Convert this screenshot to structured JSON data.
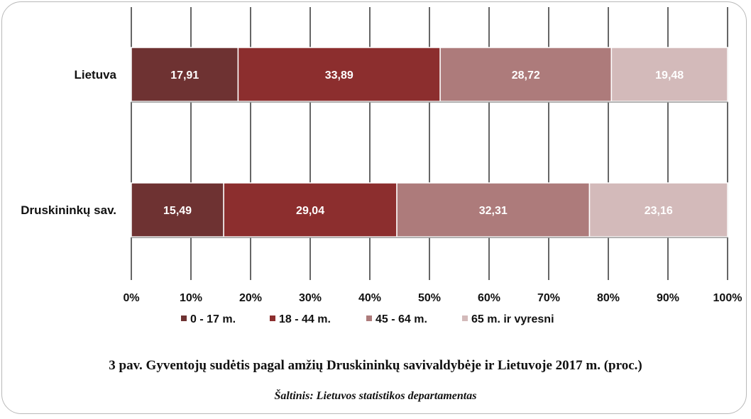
{
  "caption": "3 pav. Gyventojų sudėtis pagal amžių Druskininkų savivaldybėje ir Lietuvoje 2017 m. (proc.)",
  "source": "Šaltinis: Lietuvos statistikos departamentas",
  "chart_data": {
    "type": "bar",
    "orientation": "horizontal",
    "stacked": "percent",
    "categories": [
      "Lietuva",
      "Druskininkų sav."
    ],
    "series": [
      {
        "name": "0 - 17 m.",
        "values": [
          17.91,
          15.49
        ],
        "labels": [
          "17,91",
          "15,49"
        ],
        "color": "#6e3232"
      },
      {
        "name": "18 - 44 m.",
        "values": [
          33.89,
          29.04
        ],
        "labels": [
          "33,89",
          "29,04"
        ],
        "color": "#8c2e2e"
      },
      {
        "name": "45 - 64 m.",
        "values": [
          28.72,
          32.31
        ],
        "labels": [
          "28,72",
          "32,31"
        ],
        "color": "#ad7b7b"
      },
      {
        "name": "65 m. ir vyresni",
        "values": [
          19.48,
          23.16
        ],
        "labels": [
          "19,48",
          "23,16"
        ],
        "color": "#d3baba"
      }
    ],
    "xlim": [
      0,
      100
    ],
    "xticks": [
      "0%",
      "10%",
      "20%",
      "30%",
      "40%",
      "50%",
      "60%",
      "70%",
      "80%",
      "90%",
      "100%"
    ],
    "grid": "vertical",
    "legend": "bottom"
  }
}
